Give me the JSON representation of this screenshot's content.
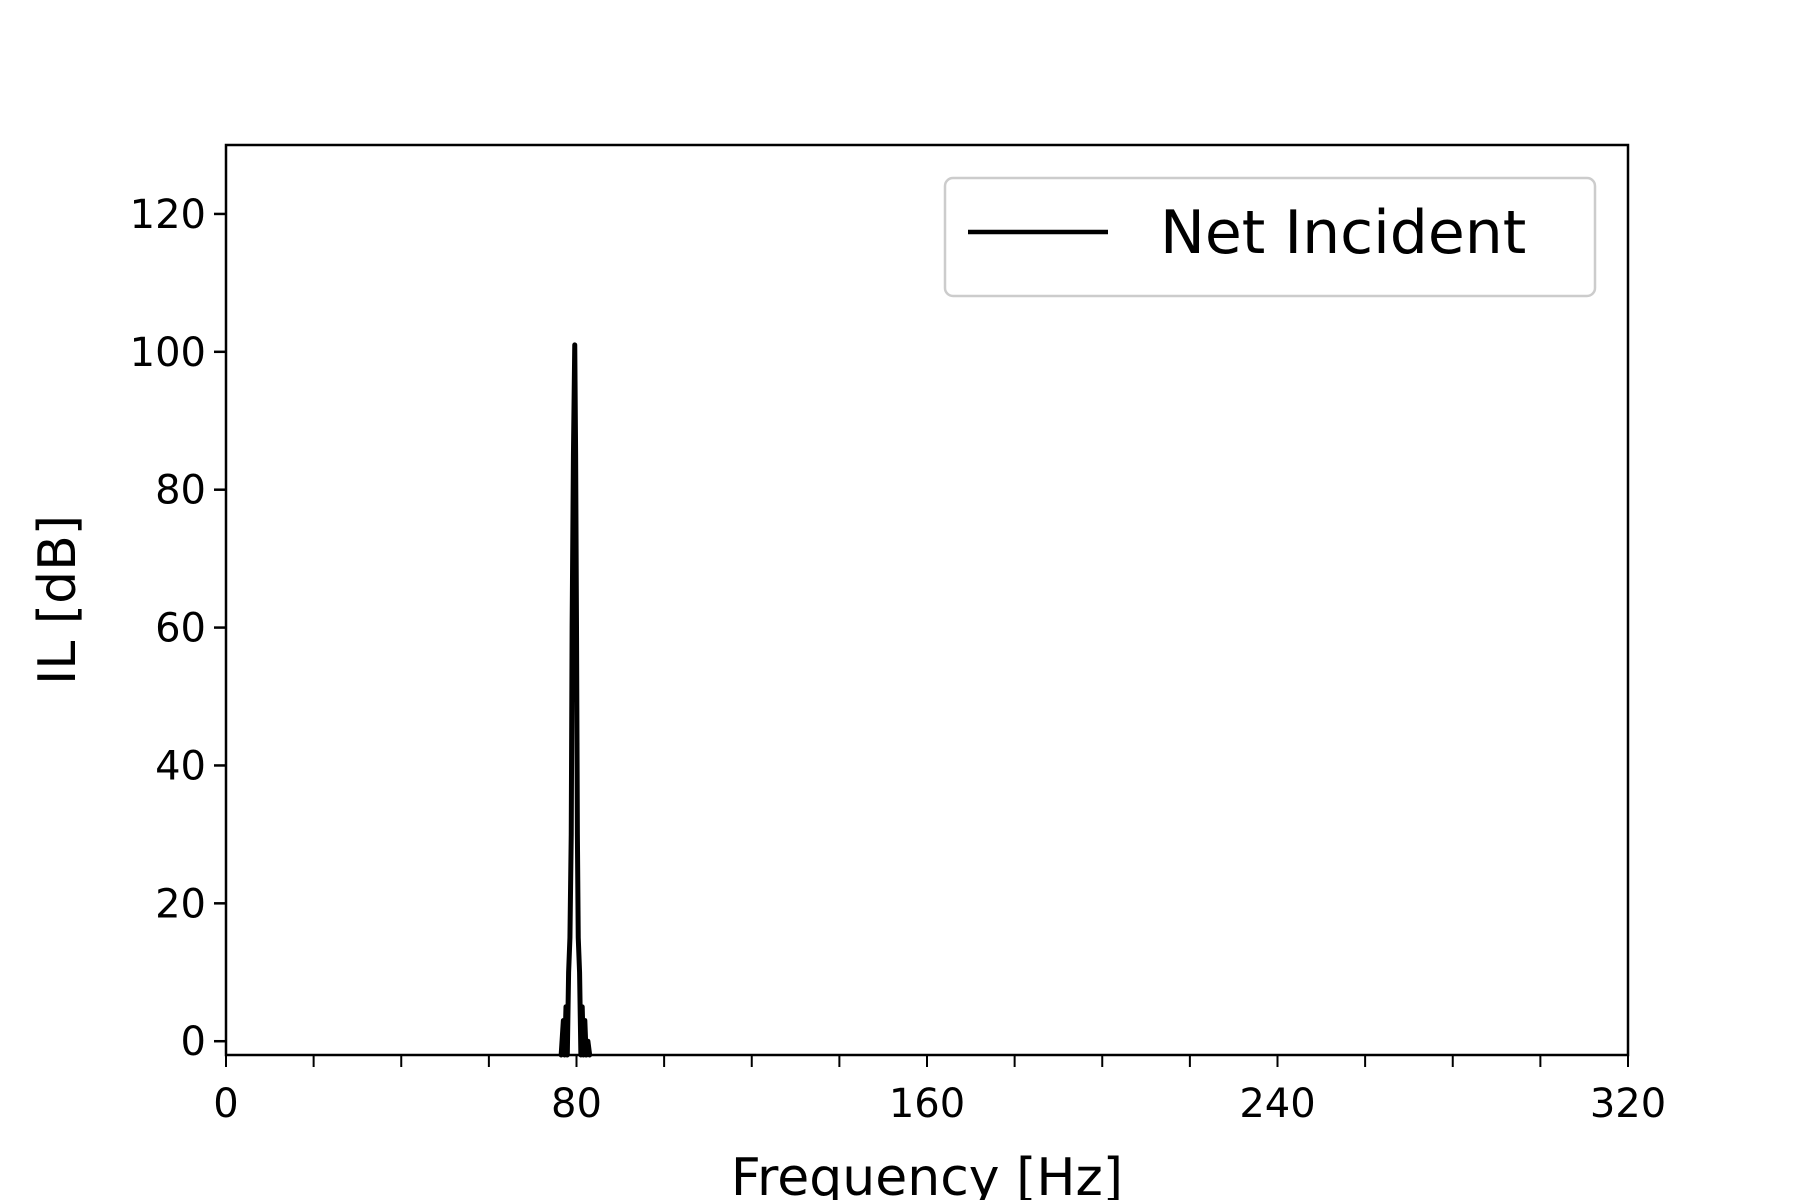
{
  "chart_data": {
    "type": "line",
    "title": "",
    "xlabel": "Frequency [Hz]",
    "ylabel": "IL [dB]",
    "xlim": [
      0,
      320
    ],
    "ylim": [
      -2,
      130
    ],
    "x_ticks": [
      0,
      80,
      160,
      240,
      320
    ],
    "x_minor_step": 20,
    "y_ticks": [
      0,
      20,
      40,
      60,
      80,
      100,
      120
    ],
    "grid": false,
    "legend_position": "top-right",
    "series": [
      {
        "name": "Net Incident",
        "color": "#000000",
        "x": [
          76.5,
          77.0,
          77.3,
          77.6,
          77.9,
          78.2,
          78.5,
          78.8,
          79.0,
          79.3,
          79.6,
          79.8,
          80.0,
          80.2,
          80.4,
          80.7,
          81.0,
          81.3,
          81.6,
          81.9,
          82.2,
          82.6,
          83.0
        ],
        "values": [
          -2,
          3,
          -2,
          5,
          -2,
          10,
          15,
          30,
          60,
          85,
          101,
          85,
          60,
          30,
          15,
          10,
          -2,
          5,
          -2,
          3,
          -2,
          0,
          -2
        ]
      }
    ]
  }
}
